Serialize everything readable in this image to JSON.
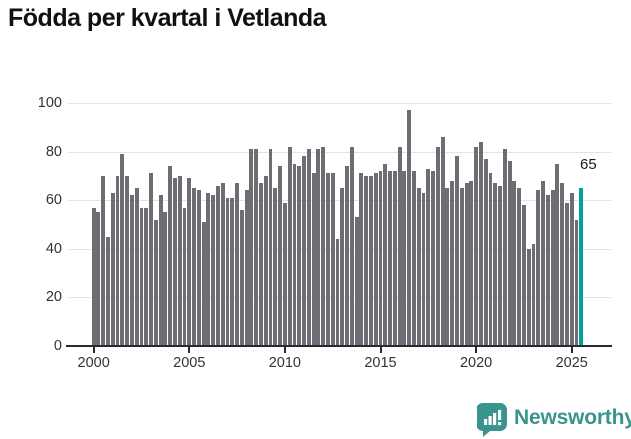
{
  "title": "Födda per kvartal i Vetlanda",
  "annotation": {
    "last_value_label": "65"
  },
  "branding": {
    "name": "Newsworthy"
  },
  "colors": {
    "bar": "#6d6d73",
    "highlight": "#00a39c",
    "grid": "#e3e3e3",
    "axis": "#2b2b2b",
    "title": "#111111",
    "tick_label": "#333333",
    "brand_teal": "#3a948e"
  },
  "chart_data": {
    "type": "bar",
    "title": "Födda per kvartal i Vetlanda",
    "frequency": "quarterly",
    "x_start": "2000 Q1",
    "x_end": "2025 Q3",
    "values": [
      57,
      55,
      70,
      45,
      63,
      70,
      79,
      70,
      62,
      65,
      57,
      57,
      71,
      52,
      62,
      55,
      74,
      69,
      70,
      57,
      69,
      65,
      64,
      51,
      63,
      62,
      66,
      67,
      61,
      61,
      67,
      56,
      64,
      81,
      81,
      67,
      70,
      81,
      65,
      74,
      59,
      82,
      75,
      74,
      78,
      81,
      71,
      81,
      82,
      71,
      71,
      44,
      65,
      74,
      82,
      53,
      71,
      70,
      70,
      71,
      72,
      75,
      72,
      72,
      82,
      72,
      97,
      72,
      65,
      63,
      73,
      72,
      82,
      86,
      65,
      68,
      78,
      65,
      67,
      68,
      82,
      84,
      77,
      71,
      67,
      66,
      81,
      76,
      68,
      65,
      58,
      40,
      42,
      64,
      68,
      62,
      64,
      75,
      67,
      59,
      63,
      52,
      65
    ],
    "highlight_index": 102,
    "highlight_value": 65,
    "x_tick_labels": [
      "2000",
      "2005",
      "2010",
      "2015",
      "2020",
      "2025"
    ],
    "x_tick_every_n_bars": 20,
    "y_ticks": [
      0,
      20,
      40,
      60,
      80,
      100
    ],
    "ylim": [
      0,
      100
    ],
    "grid": true,
    "legend": false
  }
}
